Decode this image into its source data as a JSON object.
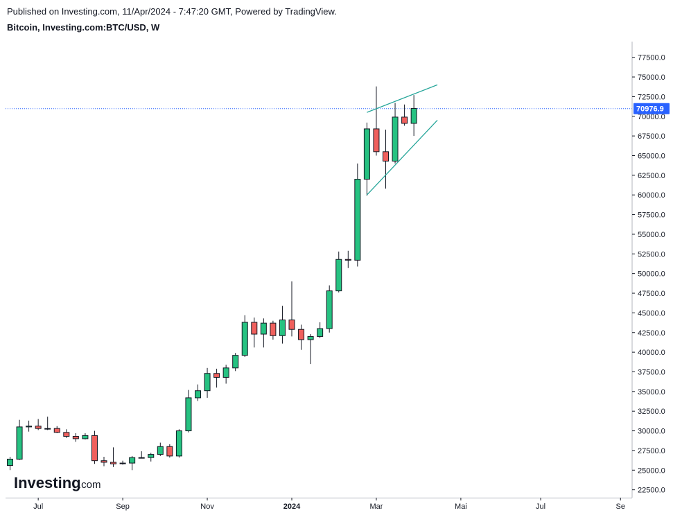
{
  "header": {
    "published": "Published on Investing.com, 11/Apr/2024 - 7:47:20 GMT, Powered by TradingView.",
    "symbol": "Bitcoin, Investing.com:BTC/USD, W"
  },
  "logo": {
    "main": "Investing",
    "suffix": ".com"
  },
  "colors": {
    "up": "#26c281",
    "down": "#f0605d",
    "border": "#131722",
    "trendline": "#26a69a",
    "price_line": "#2962ff",
    "price_badge": "#2962ff"
  },
  "chart_data": {
    "type": "candlestick",
    "timeframe": "W",
    "last_price": "70976.9",
    "ylim": [
      21500,
      79500
    ],
    "y_ticks": [
      "22500.0",
      "25000.0",
      "27500.0",
      "30000.0",
      "32500.0",
      "35000.0",
      "37500.0",
      "40000.0",
      "42500.0",
      "45000.0",
      "47500.0",
      "50000.0",
      "52500.0",
      "55000.0",
      "57500.0",
      "60000.0",
      "62500.0",
      "65000.0",
      "67500.0",
      "70000.0",
      "72500.0",
      "75000.0",
      "77500.0"
    ],
    "x_labels": [
      {
        "label": "Jul",
        "bar": 3,
        "bold": false
      },
      {
        "label": "Sep",
        "bar": 12,
        "bold": false
      },
      {
        "label": "Nov",
        "bar": 21,
        "bold": false
      },
      {
        "label": "2024",
        "bar": 30,
        "bold": true
      },
      {
        "label": "Mar",
        "bar": 39,
        "bold": false
      },
      {
        "label": "Mai",
        "bar": 48,
        "bold": false
      },
      {
        "label": "Jul",
        "bar": 56.5,
        "bold": false
      },
      {
        "label": "Se",
        "bar": 65,
        "bold": false
      }
    ],
    "candles": [
      [
        25600,
        26700,
        25000,
        26400
      ],
      [
        26400,
        31400,
        26300,
        30500
      ],
      [
        30500,
        31300,
        29900,
        30600
      ],
      [
        30600,
        31500,
        30100,
        30300
      ],
      [
        30300,
        31800,
        30100,
        30300
      ],
      [
        30300,
        30600,
        29700,
        29800
      ],
      [
        29800,
        30200,
        29100,
        29300
      ],
      [
        29300,
        29700,
        28600,
        29000
      ],
      [
        29000,
        29700,
        28900,
        29400
      ],
      [
        29400,
        30000,
        25800,
        26200
      ],
      [
        26200,
        26700,
        25500,
        26000
      ],
      [
        26000,
        27900,
        25400,
        25800
      ],
      [
        25900,
        26200,
        25700,
        25900
      ],
      [
        25900,
        26800,
        25000,
        26600
      ],
      [
        26600,
        27400,
        26500,
        26600
      ],
      [
        26600,
        27200,
        26100,
        27000
      ],
      [
        27000,
        28500,
        26800,
        28000
      ],
      [
        28000,
        28300,
        26600,
        26800
      ],
      [
        26800,
        30200,
        26600,
        30000
      ],
      [
        30000,
        35200,
        29800,
        34200
      ],
      [
        34200,
        35900,
        33800,
        35100
      ],
      [
        35100,
        38000,
        34200,
        37300
      ],
      [
        37300,
        37900,
        35500,
        36800
      ],
      [
        36800,
        38400,
        36000,
        38000
      ],
      [
        38000,
        39900,
        37600,
        39600
      ],
      [
        39600,
        44700,
        39400,
        43800
      ],
      [
        43800,
        44400,
        40600,
        42300
      ],
      [
        42300,
        44300,
        40600,
        43700
      ],
      [
        43700,
        44000,
        41600,
        42100
      ],
      [
        42100,
        45900,
        41100,
        44100
      ],
      [
        44100,
        49000,
        42000,
        42900
      ],
      [
        42900,
        43500,
        40300,
        41600
      ],
      [
        41600,
        42300,
        38500,
        42000
      ],
      [
        42000,
        43800,
        41800,
        43000
      ],
      [
        43000,
        48500,
        42500,
        47800
      ],
      [
        47800,
        52800,
        47600,
        51800
      ],
      [
        51800,
        52900,
        50700,
        51700
      ],
      [
        51700,
        64000,
        50900,
        62000
      ],
      [
        62000,
        69200,
        59900,
        68400
      ],
      [
        68400,
        73800,
        65000,
        65500
      ],
      [
        65500,
        68300,
        60800,
        64300
      ],
      [
        64300,
        71700,
        64000,
        69900
      ],
      [
        69900,
        71500,
        68800,
        69100
      ],
      [
        69100,
        72700,
        67500,
        71000
      ]
    ],
    "trendlines": [
      {
        "from": [
          38,
          70500
        ],
        "to": [
          45.5,
          74000
        ]
      },
      {
        "from": [
          38,
          60000
        ],
        "to": [
          45.5,
          69500
        ]
      }
    ]
  }
}
